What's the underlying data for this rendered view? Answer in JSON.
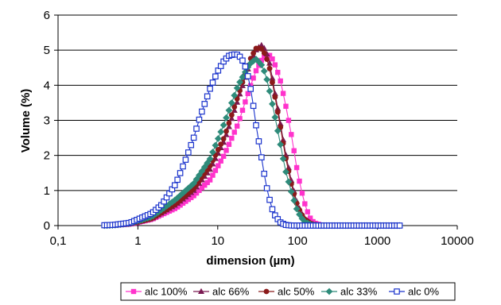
{
  "chart_data": {
    "type": "line",
    "title": "",
    "xlabel": "dimension (µm)",
    "ylabel": "Volume (%)",
    "x_scale": "log",
    "xlim": [
      0.1,
      10000
    ],
    "ylim": [
      0,
      6
    ],
    "x_tick_labels": [
      "0,1",
      "1",
      "10",
      "100",
      "1000",
      "10000"
    ],
    "y_tick_labels": [
      "0",
      "1",
      "2",
      "3",
      "4",
      "5",
      "6"
    ],
    "grid": "horizontal",
    "legend_position": "bottom",
    "x_range": [
      0.38,
      1900
    ],
    "series": [
      {
        "name": "alc 100%",
        "color": "#ff33cc",
        "marker": "square",
        "x": [
          0.38,
          0.5,
          0.8,
          1.5,
          3,
          5,
          8,
          12,
          18,
          25,
          30,
          35,
          40,
          45,
          50,
          60,
          70,
          85,
          100,
          120,
          140,
          160,
          200,
          300,
          500,
          1000,
          1900
        ],
        "values": [
          0,
          0.01,
          0.04,
          0.18,
          0.5,
          0.85,
          1.3,
          2.0,
          2.9,
          3.9,
          4.4,
          4.7,
          4.85,
          4.85,
          4.7,
          4.2,
          3.5,
          2.5,
          1.5,
          0.7,
          0.25,
          0.08,
          0.01,
          0,
          0,
          0,
          0
        ]
      },
      {
        "name": "alc 66%",
        "color": "#7a1a52",
        "marker": "triangle",
        "x": [
          0.38,
          0.5,
          0.8,
          1.5,
          3,
          5,
          8,
          12,
          18,
          25,
          30,
          35,
          40,
          45,
          50,
          60,
          70,
          85,
          100,
          120,
          150,
          200,
          300,
          500,
          1000,
          1900
        ],
        "values": [
          0,
          0.01,
          0.05,
          0.2,
          0.6,
          1.0,
          1.6,
          2.4,
          3.6,
          4.6,
          5.0,
          5.15,
          5.0,
          4.6,
          4.0,
          3.0,
          2.1,
          1.2,
          0.6,
          0.22,
          0.05,
          0,
          0,
          0,
          0,
          0
        ]
      },
      {
        "name": "alc 50%",
        "color": "#8b1a1a",
        "marker": "circle",
        "x": [
          0.38,
          0.5,
          0.8,
          1.5,
          3,
          5,
          8,
          12,
          18,
          25,
          30,
          35,
          40,
          45,
          50,
          60,
          70,
          85,
          100,
          120,
          150,
          200,
          300,
          500,
          1000,
          1900
        ],
        "values": [
          0,
          0.01,
          0.05,
          0.2,
          0.62,
          1.05,
          1.7,
          2.5,
          3.7,
          4.7,
          5.05,
          5.05,
          4.85,
          4.45,
          3.9,
          2.9,
          2.0,
          1.1,
          0.55,
          0.2,
          0.04,
          0,
          0,
          0,
          0,
          0
        ]
      },
      {
        "name": "alc 33%",
        "color": "#2e8b7a",
        "marker": "diamond",
        "x": [
          0.38,
          0.5,
          0.8,
          1.5,
          3,
          5,
          8,
          12,
          18,
          25,
          30,
          35,
          40,
          45,
          50,
          60,
          70,
          85,
          100,
          120,
          150,
          200,
          300,
          500,
          1000,
          1900
        ],
        "values": [
          0,
          0.01,
          0.06,
          0.25,
          0.75,
          1.2,
          1.9,
          2.9,
          4.0,
          4.6,
          4.75,
          4.6,
          4.3,
          3.8,
          3.3,
          2.4,
          1.6,
          0.9,
          0.4,
          0.12,
          0.02,
          0,
          0,
          0,
          0,
          0
        ]
      },
      {
        "name": "alc 0%",
        "color": "#1a33cc",
        "marker": "open-square",
        "x": [
          0.38,
          0.5,
          0.8,
          1.5,
          2,
          3,
          4,
          5,
          6,
          8,
          10,
          12,
          14,
          16,
          18,
          20,
          22,
          25,
          28,
          30,
          35,
          40,
          45,
          50,
          60,
          70,
          85,
          100,
          120,
          200,
          500,
          1000,
          1900
        ],
        "values": [
          0.01,
          0.02,
          0.08,
          0.35,
          0.6,
          1.2,
          1.9,
          2.5,
          3.1,
          3.9,
          4.4,
          4.7,
          4.85,
          4.88,
          4.87,
          4.75,
          4.55,
          4.1,
          3.4,
          2.9,
          2.0,
          1.2,
          0.7,
          0.35,
          0.1,
          0.02,
          0,
          0,
          0,
          0,
          0,
          0,
          0
        ]
      }
    ]
  }
}
